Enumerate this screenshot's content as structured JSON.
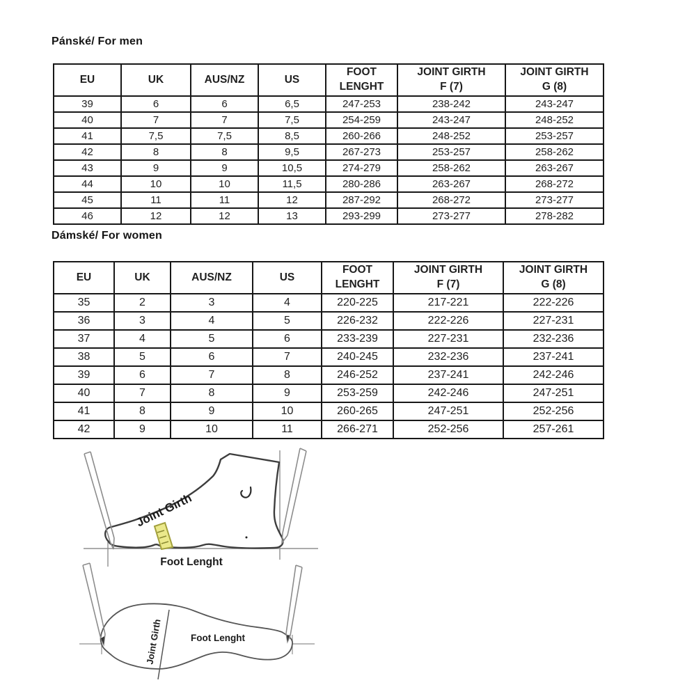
{
  "tables": {
    "men": {
      "title": "Pánské/ For men",
      "headers": [
        "EU",
        "UK",
        "AUS/NZ",
        "US",
        "FOOT\nLENGHT",
        "JOINT GIRTH\nF (7)",
        "JOINT GIRTH\nG (8)"
      ],
      "rows": [
        [
          "39",
          "6",
          "6",
          "6,5",
          "247-253",
          "238-242",
          "243-247"
        ],
        [
          "40",
          "7",
          "7",
          "7,5",
          "254-259",
          "243-247",
          "248-252"
        ],
        [
          "41",
          "7,5",
          "7,5",
          "8,5",
          "260-266",
          "248-252",
          "253-257"
        ],
        [
          "42",
          "8",
          "8",
          "9,5",
          "267-273",
          "253-257",
          "258-262"
        ],
        [
          "43",
          "9",
          "9",
          "10,5",
          "274-279",
          "258-262",
          "263-267"
        ],
        [
          "44",
          "10",
          "10",
          "11,5",
          "280-286",
          "263-267",
          "268-272"
        ],
        [
          "45",
          "11",
          "11",
          "12",
          "287-292",
          "268-272",
          "273-277"
        ],
        [
          "46",
          "12",
          "12",
          "13",
          "293-299",
          "273-277",
          "278-282"
        ]
      ]
    },
    "women": {
      "title": "Dámské/ For women",
      "headers": [
        "EU",
        "UK",
        "AUS/NZ",
        "US",
        "FOOT\nLENGHT",
        "JOINT GIRTH\nF (7)",
        "JOINT GIRTH\nG (8)"
      ],
      "rows": [
        [
          "35",
          "2",
          "3",
          "4",
          "220-225",
          "217-221",
          "222-226"
        ],
        [
          "36",
          "3",
          "4",
          "5",
          "226-232",
          "222-226",
          "227-231"
        ],
        [
          "37",
          "4",
          "5",
          "6",
          "233-239",
          "227-231",
          "232-236"
        ],
        [
          "38",
          "5",
          "6",
          "7",
          "240-245",
          "232-236",
          "237-241"
        ],
        [
          "39",
          "6",
          "7",
          "8",
          "246-252",
          "237-241",
          "242-246"
        ],
        [
          "40",
          "7",
          "8",
          "9",
          "253-259",
          "242-246",
          "247-251"
        ],
        [
          "41",
          "8",
          "9",
          "10",
          "260-265",
          "247-251",
          "252-256"
        ],
        [
          "42",
          "9",
          "10",
          "11",
          "266-271",
          "252-256",
          "257-261"
        ]
      ]
    }
  },
  "diagram_side": {
    "joint_girth": "Joint Girth",
    "foot_length": "Foot Lenght"
  },
  "diagram_top": {
    "joint_girth": "Joint Girth",
    "foot_length": "Foot Lenght"
  },
  "colors": {
    "tape_fill": "#ebe98b",
    "tape_border": "#a2a03c",
    "ink": "#1f1f1f",
    "guide_line": "#8f8f8f"
  }
}
